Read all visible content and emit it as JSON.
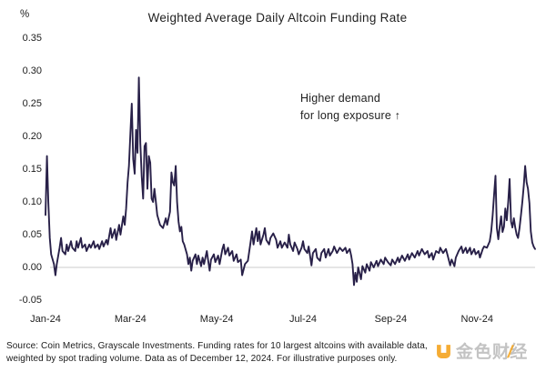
{
  "chart_data": {
    "type": "line",
    "title": "Weighted Average Daily Altcoin Funding Rate",
    "unit_label": "%",
    "xlabel": "",
    "ylabel": "%",
    "ylim": [
      -0.05,
      0.35
    ],
    "x_range_days": [
      0,
      346
    ],
    "grid": "zero-line-only",
    "legend": "none",
    "line_color": "#282048",
    "zero_line_color": "#cbcbcb",
    "annotation": {
      "line1": "Higher demand",
      "line2": "for long exposure ↑"
    },
    "y_ticks": [
      {
        "label": "0.35",
        "value": 0.35
      },
      {
        "label": "0.30",
        "value": 0.3
      },
      {
        "label": "0.25",
        "value": 0.25
      },
      {
        "label": "0.20",
        "value": 0.2
      },
      {
        "label": "0.15",
        "value": 0.15
      },
      {
        "label": "0.10",
        "value": 0.1
      },
      {
        "label": "0.05",
        "value": 0.05
      },
      {
        "label": "0.00",
        "value": 0.0
      },
      {
        "label": "-0.05",
        "value": -0.05
      }
    ],
    "x_ticks": [
      {
        "label": "Jan-24",
        "day": 0
      },
      {
        "label": "Mar-24",
        "day": 60
      },
      {
        "label": "May-24",
        "day": 121
      },
      {
        "label": "Jul-24",
        "day": 182
      },
      {
        "label": "Sep-24",
        "day": 244
      },
      {
        "label": "Nov-24",
        "day": 305
      }
    ],
    "series": [
      [
        0,
        0.08
      ],
      [
        1,
        0.17
      ],
      [
        2,
        0.1
      ],
      [
        3,
        0.045
      ],
      [
        4,
        0.02
      ],
      [
        6,
        0.005
      ],
      [
        7,
        -0.012
      ],
      [
        8,
        0.005
      ],
      [
        10,
        0.03
      ],
      [
        11,
        0.045
      ],
      [
        12,
        0.025
      ],
      [
        14,
        0.02
      ],
      [
        15,
        0.035
      ],
      [
        16,
        0.025
      ],
      [
        18,
        0.04
      ],
      [
        19,
        0.03
      ],
      [
        21,
        0.025
      ],
      [
        22,
        0.04
      ],
      [
        23,
        0.03
      ],
      [
        25,
        0.045
      ],
      [
        26,
        0.03
      ],
      [
        28,
        0.035
      ],
      [
        29,
        0.025
      ],
      [
        31,
        0.035
      ],
      [
        32,
        0.03
      ],
      [
        34,
        0.04
      ],
      [
        35,
        0.03
      ],
      [
        37,
        0.035
      ],
      [
        38,
        0.028
      ],
      [
        40,
        0.04
      ],
      [
        41,
        0.032
      ],
      [
        43,
        0.042
      ],
      [
        44,
        0.035
      ],
      [
        46,
        0.06
      ],
      [
        47,
        0.045
      ],
      [
        49,
        0.058
      ],
      [
        50,
        0.042
      ],
      [
        52,
        0.065
      ],
      [
        53,
        0.05
      ],
      [
        55,
        0.078
      ],
      [
        56,
        0.065
      ],
      [
        57,
        0.09
      ],
      [
        58,
        0.13
      ],
      [
        59,
        0.155
      ],
      [
        60,
        0.205
      ],
      [
        61,
        0.25
      ],
      [
        62,
        0.165
      ],
      [
        63,
        0.143
      ],
      [
        64,
        0.21
      ],
      [
        65,
        0.175
      ],
      [
        66,
        0.29
      ],
      [
        67,
        0.19
      ],
      [
        68,
        0.14
      ],
      [
        69,
        0.105
      ],
      [
        70,
        0.185
      ],
      [
        71,
        0.19
      ],
      [
        72,
        0.12
      ],
      [
        73,
        0.17
      ],
      [
        74,
        0.16
      ],
      [
        75,
        0.105
      ],
      [
        76,
        0.1
      ],
      [
        77,
        0.12
      ],
      [
        78,
        0.1
      ],
      [
        79,
        0.08
      ],
      [
        81,
        0.065
      ],
      [
        83,
        0.06
      ],
      [
        85,
        0.075
      ],
      [
        86,
        0.065
      ],
      [
        88,
        0.085
      ],
      [
        89,
        0.145
      ],
      [
        90,
        0.13
      ],
      [
        91,
        0.125
      ],
      [
        92,
        0.155
      ],
      [
        93,
        0.1
      ],
      [
        94,
        0.07
      ],
      [
        95,
        0.055
      ],
      [
        96,
        0.062
      ],
      [
        97,
        0.04
      ],
      [
        98,
        0.035
      ],
      [
        100,
        0.02
      ],
      [
        101,
        0.005
      ],
      [
        102,
        0.015
      ],
      [
        103,
        -0.005
      ],
      [
        104,
        0.01
      ],
      [
        106,
        0.02
      ],
      [
        107,
        0.005
      ],
      [
        108,
        0.018
      ],
      [
        110,
        0.002
      ],
      [
        111,
        0.015
      ],
      [
        112,
        0.005
      ],
      [
        114,
        0.025
      ],
      [
        115,
        0.01
      ],
      [
        116,
        -0.005
      ],
      [
        117,
        0.012
      ],
      [
        119,
        0.02
      ],
      [
        120,
        0.008
      ],
      [
        122,
        0.018
      ],
      [
        123,
        0.005
      ],
      [
        125,
        0.028
      ],
      [
        126,
        0.035
      ],
      [
        127,
        0.02
      ],
      [
        129,
        0.03
      ],
      [
        130,
        0.018
      ],
      [
        132,
        0.025
      ],
      [
        133,
        0.01
      ],
      [
        135,
        0.02
      ],
      [
        136,
        0.008
      ],
      [
        138,
        0.012
      ],
      [
        139,
        -0.012
      ],
      [
        141,
        0.005
      ],
      [
        143,
        0.01
      ],
      [
        145,
        0.04
      ],
      [
        146,
        0.055
      ],
      [
        147,
        0.035
      ],
      [
        149,
        0.06
      ],
      [
        150,
        0.04
      ],
      [
        151,
        0.055
      ],
      [
        152,
        0.035
      ],
      [
        154,
        0.05
      ],
      [
        155,
        0.06
      ],
      [
        156,
        0.042
      ],
      [
        158,
        0.035
      ],
      [
        159,
        0.045
      ],
      [
        161,
        0.052
      ],
      [
        163,
        0.042
      ],
      [
        164,
        0.03
      ],
      [
        166,
        0.04
      ],
      [
        167,
        0.03
      ],
      [
        169,
        0.038
      ],
      [
        171,
        0.03
      ],
      [
        172,
        0.05
      ],
      [
        173,
        0.035
      ],
      [
        175,
        0.025
      ],
      [
        176,
        0.038
      ],
      [
        178,
        0.028
      ],
      [
        179,
        0.02
      ],
      [
        181,
        0.03
      ],
      [
        182,
        0.04
      ],
      [
        183,
        0.028
      ],
      [
        185,
        0.022
      ],
      [
        186,
        0.032
      ],
      [
        188,
        0.003
      ],
      [
        189,
        0.022
      ],
      [
        191,
        0.028
      ],
      [
        192,
        0.015
      ],
      [
        194,
        0.01
      ],
      [
        195,
        0.022
      ],
      [
        197,
        0.028
      ],
      [
        198,
        0.015
      ],
      [
        200,
        0.028
      ],
      [
        201,
        0.018
      ],
      [
        203,
        0.025
      ],
      [
        204,
        0.032
      ],
      [
        206,
        0.022
      ],
      [
        208,
        0.03
      ],
      [
        210,
        0.025
      ],
      [
        212,
        0.03
      ],
      [
        213,
        0.022
      ],
      [
        215,
        0.028
      ],
      [
        216,
        0.018
      ],
      [
        217,
        0.005
      ],
      [
        218,
        -0.027
      ],
      [
        219,
        -0.008
      ],
      [
        220,
        -0.022
      ],
      [
        221,
        0.0
      ],
      [
        223,
        -0.018
      ],
      [
        224,
        0.002
      ],
      [
        226,
        -0.008
      ],
      [
        227,
        0.005
      ],
      [
        229,
        -0.005
      ],
      [
        230,
        0.008
      ],
      [
        232,
        0.0
      ],
      [
        234,
        0.01
      ],
      [
        235,
        0.002
      ],
      [
        237,
        0.012
      ],
      [
        239,
        0.005
      ],
      [
        240,
        0.015
      ],
      [
        242,
        0.008
      ],
      [
        244,
        0.003
      ],
      [
        245,
        0.012
      ],
      [
        247,
        0.005
      ],
      [
        249,
        0.015
      ],
      [
        250,
        0.008
      ],
      [
        252,
        0.018
      ],
      [
        254,
        0.01
      ],
      [
        256,
        0.02
      ],
      [
        257,
        0.012
      ],
      [
        259,
        0.022
      ],
      [
        261,
        0.015
      ],
      [
        263,
        0.025
      ],
      [
        264,
        0.018
      ],
      [
        266,
        0.028
      ],
      [
        268,
        0.02
      ],
      [
        270,
        0.025
      ],
      [
        271,
        0.015
      ],
      [
        273,
        0.022
      ],
      [
        274,
        0.012
      ],
      [
        276,
        0.025
      ],
      [
        278,
        0.022
      ],
      [
        279,
        0.03
      ],
      [
        281,
        0.022
      ],
      [
        283,
        0.028
      ],
      [
        284,
        0.02
      ],
      [
        286,
        0.003
      ],
      [
        287,
        0.012
      ],
      [
        289,
        0.002
      ],
      [
        290,
        0.015
      ],
      [
        292,
        0.025
      ],
      [
        294,
        0.032
      ],
      [
        295,
        0.022
      ],
      [
        297,
        0.03
      ],
      [
        298,
        0.022
      ],
      [
        300,
        0.03
      ],
      [
        301,
        0.02
      ],
      [
        303,
        0.028
      ],
      [
        304,
        0.02
      ],
      [
        306,
        0.025
      ],
      [
        307,
        0.015
      ],
      [
        309,
        0.028
      ],
      [
        310,
        0.032
      ],
      [
        312,
        0.03
      ],
      [
        314,
        0.04
      ],
      [
        315,
        0.055
      ],
      [
        316,
        0.08
      ],
      [
        317,
        0.11
      ],
      [
        318,
        0.14
      ],
      [
        319,
        0.06
      ],
      [
        320,
        0.043
      ],
      [
        321,
        0.062
      ],
      [
        322,
        0.078
      ],
      [
        323,
        0.054
      ],
      [
        324,
        0.062
      ],
      [
        325,
        0.09
      ],
      [
        326,
        0.072
      ],
      [
        327,
        0.1
      ],
      [
        328,
        0.135
      ],
      [
        329,
        0.07
      ],
      [
        330,
        0.061
      ],
      [
        331,
        0.075
      ],
      [
        332,
        0.061
      ],
      [
        333,
        0.05
      ],
      [
        334,
        0.045
      ],
      [
        335,
        0.06
      ],
      [
        336,
        0.08
      ],
      [
        337,
        0.1
      ],
      [
        338,
        0.125
      ],
      [
        339,
        0.155
      ],
      [
        340,
        0.13
      ],
      [
        341,
        0.12
      ],
      [
        342,
        0.098
      ],
      [
        343,
        0.055
      ],
      [
        344,
        0.038
      ],
      [
        345,
        0.032
      ],
      [
        346,
        0.028
      ]
    ]
  },
  "footer": {
    "line1": "Source: Coin Metrics, Grayscale Investments. Funding rates for 10 largest altcoins with available data,",
    "line2": "weighted by spot trading volume. Data as of December 12, 2024. For illustrative purposes only."
  },
  "watermark": {
    "part1": "金色财",
    "slash": "/",
    "part2": "经",
    "icon_color": "#F5A623"
  }
}
